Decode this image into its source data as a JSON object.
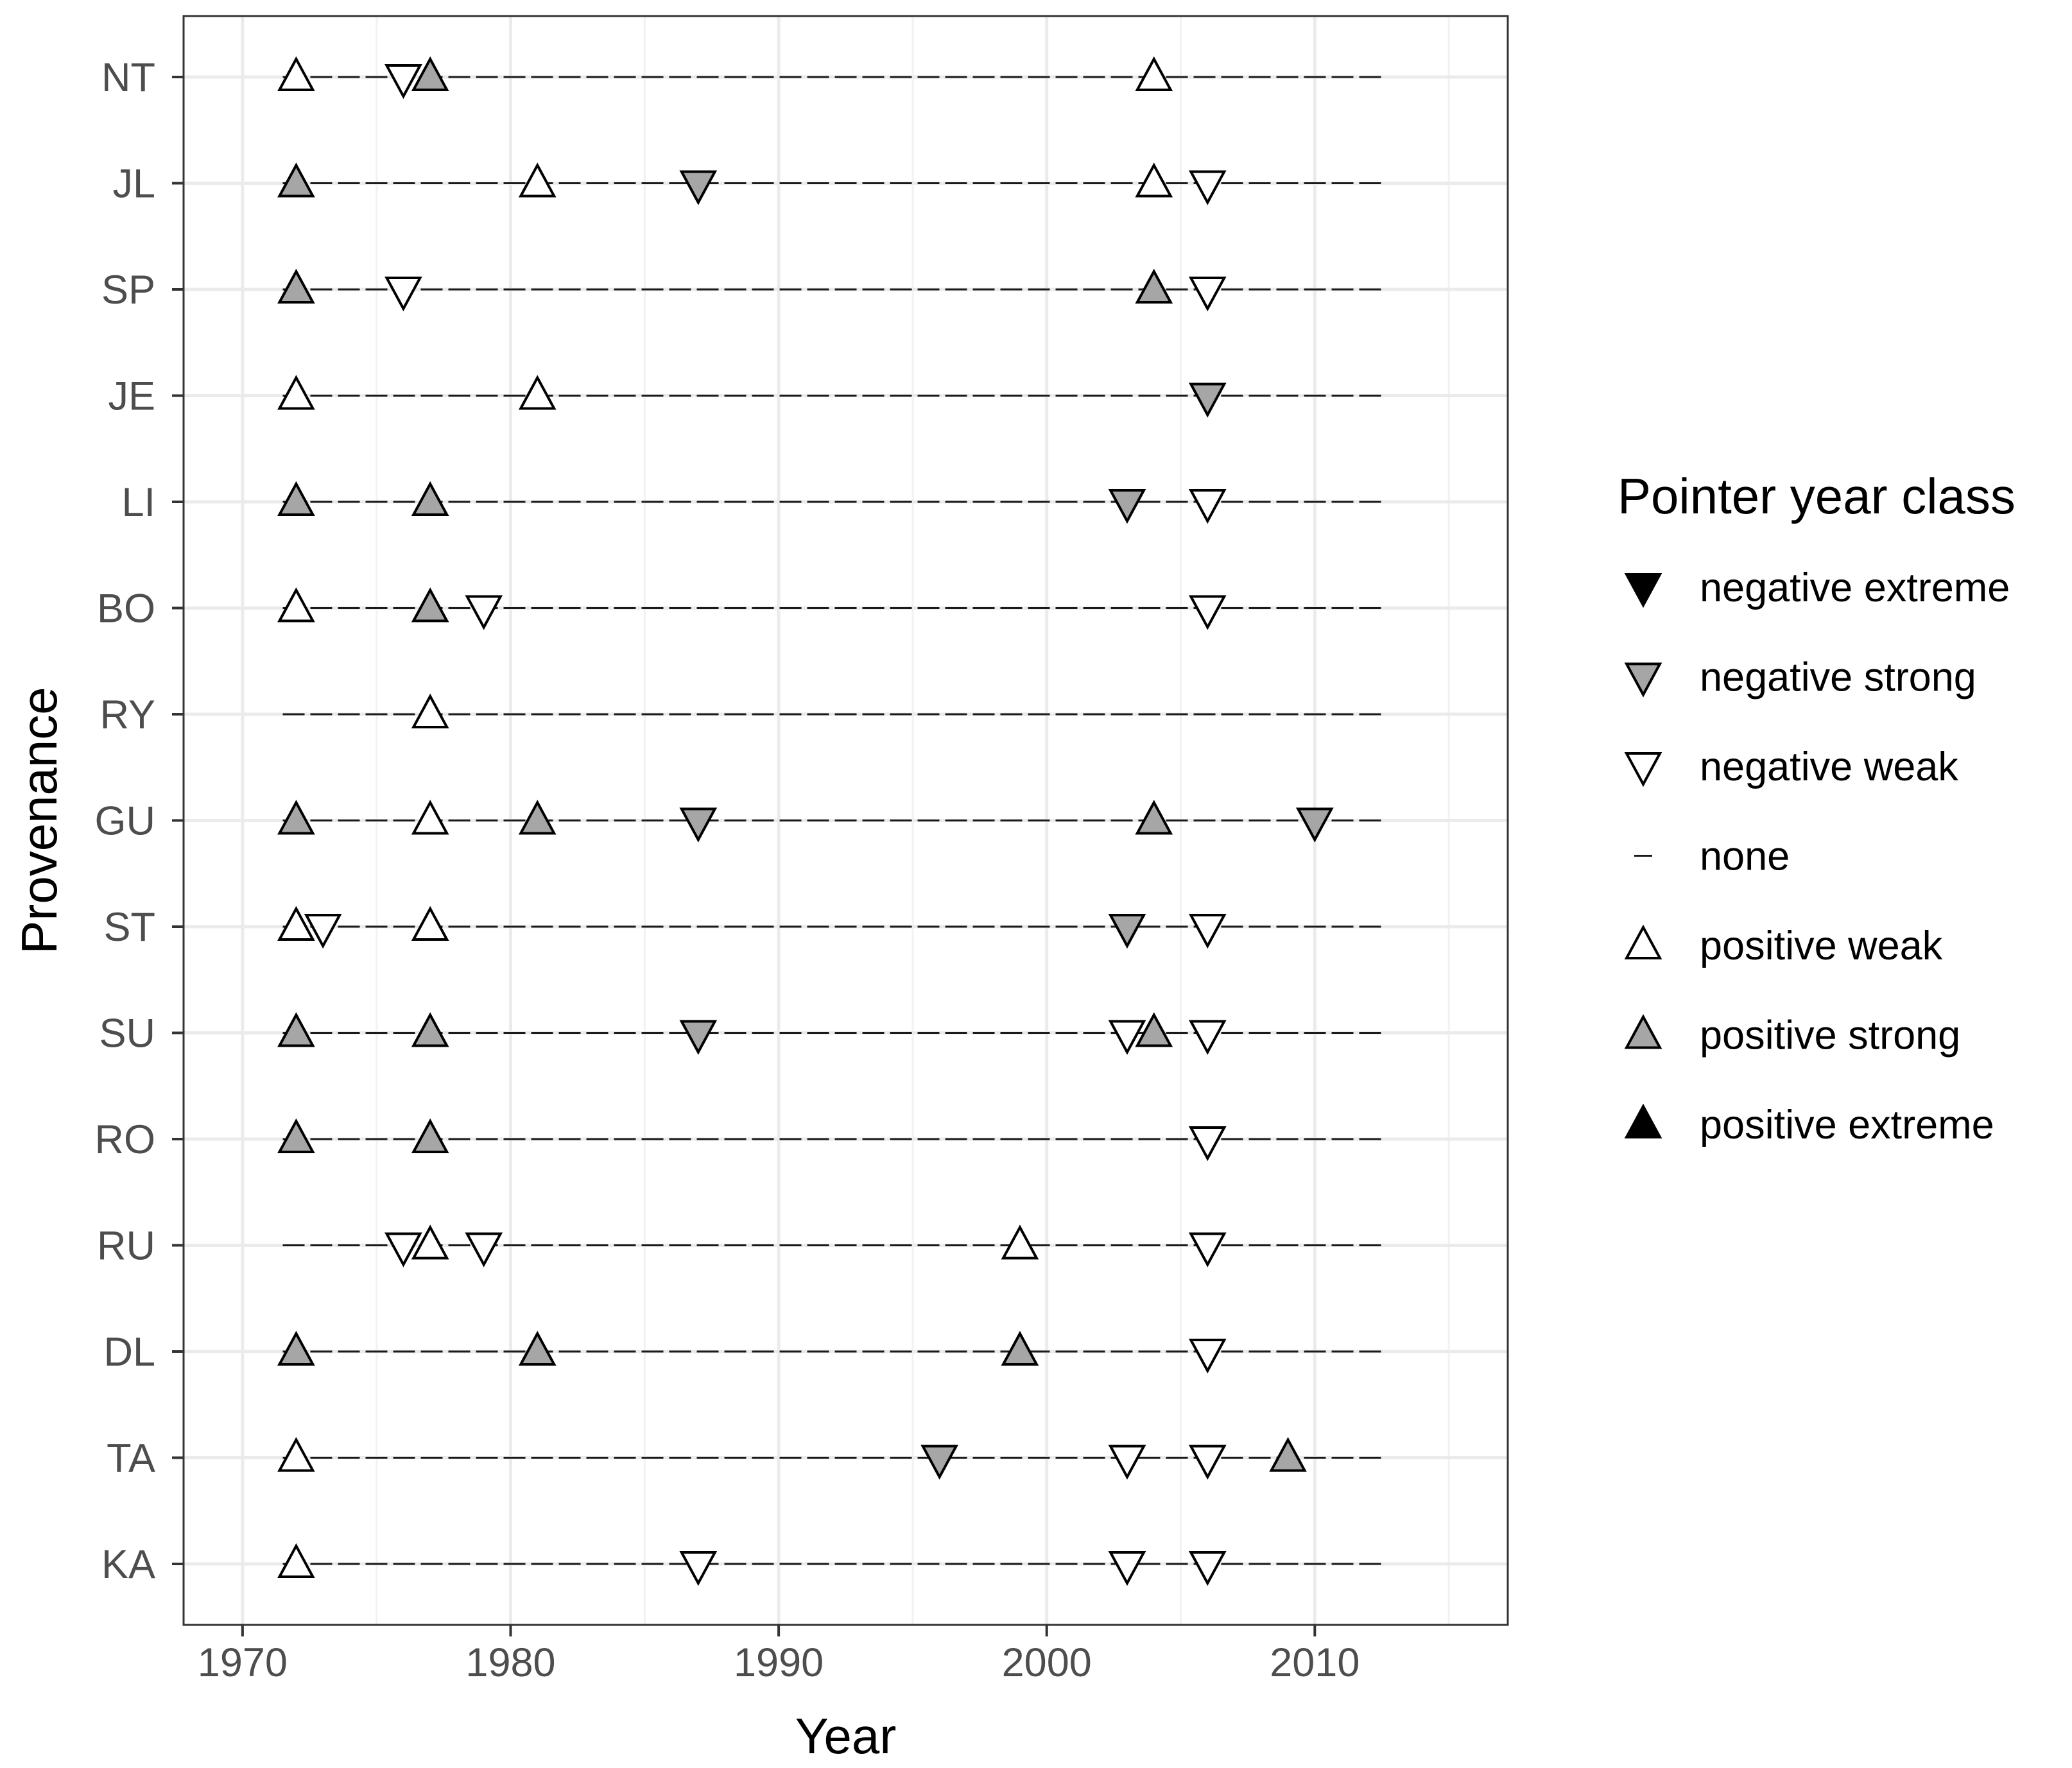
{
  "chart_data": {
    "type": "scatter",
    "xlabel": "Year",
    "ylabel": "Provenance",
    "xlim": [
      1967.8,
      2017.2
    ],
    "xticks": [
      1970,
      1980,
      1990,
      2000,
      2010
    ],
    "x_range_lines": [
      1971.5,
      2012.5
    ],
    "grid": true,
    "legend": {
      "title": "Pointer year class",
      "placement": "right",
      "entries": [
        {
          "label": "negative extreme",
          "class": "negative extreme"
        },
        {
          "label": "negative strong",
          "class": "negative strong"
        },
        {
          "label": "negative weak",
          "class": "negative weak"
        },
        {
          "label": "none",
          "class": "none"
        },
        {
          "label": "positive weak",
          "class": "positive weak"
        },
        {
          "label": "positive strong",
          "class": "positive strong"
        },
        {
          "label": "positive extreme",
          "class": "positive extreme"
        }
      ]
    },
    "class_style": {
      "negative extreme": {
        "shape": "down",
        "fill": "#000000"
      },
      "negative strong": {
        "shape": "down",
        "fill": "#a6a6a6"
      },
      "negative weak": {
        "shape": "down",
        "fill": "#ffffff"
      },
      "none": {
        "shape": "dash",
        "fill": "#000000"
      },
      "positive weak": {
        "shape": "up",
        "fill": "#ffffff"
      },
      "positive strong": {
        "shape": "up",
        "fill": "#a6a6a6"
      },
      "positive extreme": {
        "shape": "up",
        "fill": "#000000"
      }
    },
    "provenances": [
      "NT",
      "JL",
      "SP",
      "JE",
      "LI",
      "BO",
      "RY",
      "GU",
      "ST",
      "SU",
      "RO",
      "RU",
      "DL",
      "TA",
      "KA"
    ],
    "series": [
      {
        "provenance": "NT",
        "points": [
          {
            "year": 1972,
            "class": "positive weak"
          },
          {
            "year": 1976,
            "class": "negative weak"
          },
          {
            "year": 1977,
            "class": "positive strong"
          },
          {
            "year": 2004,
            "class": "positive weak"
          }
        ]
      },
      {
        "provenance": "JL",
        "points": [
          {
            "year": 1972,
            "class": "positive strong"
          },
          {
            "year": 1981,
            "class": "positive weak"
          },
          {
            "year": 1987,
            "class": "negative strong"
          },
          {
            "year": 2004,
            "class": "positive weak"
          },
          {
            "year": 2006,
            "class": "negative weak"
          }
        ]
      },
      {
        "provenance": "SP",
        "points": [
          {
            "year": 1972,
            "class": "positive strong"
          },
          {
            "year": 1976,
            "class": "negative weak"
          },
          {
            "year": 2004,
            "class": "positive strong"
          },
          {
            "year": 2006,
            "class": "negative weak"
          }
        ]
      },
      {
        "provenance": "JE",
        "points": [
          {
            "year": 1972,
            "class": "positive weak"
          },
          {
            "year": 1981,
            "class": "positive weak"
          },
          {
            "year": 2006,
            "class": "negative strong"
          }
        ]
      },
      {
        "provenance": "LI",
        "points": [
          {
            "year": 1972,
            "class": "positive strong"
          },
          {
            "year": 1977,
            "class": "positive strong"
          },
          {
            "year": 2003,
            "class": "negative strong"
          },
          {
            "year": 2006,
            "class": "negative weak"
          }
        ]
      },
      {
        "provenance": "BO",
        "points": [
          {
            "year": 1972,
            "class": "positive weak"
          },
          {
            "year": 1977,
            "class": "positive strong"
          },
          {
            "year": 1979,
            "class": "negative weak"
          },
          {
            "year": 2006,
            "class": "negative weak"
          }
        ]
      },
      {
        "provenance": "RY",
        "points": [
          {
            "year": 1977,
            "class": "positive weak"
          }
        ]
      },
      {
        "provenance": "GU",
        "points": [
          {
            "year": 1972,
            "class": "positive strong"
          },
          {
            "year": 1977,
            "class": "positive weak"
          },
          {
            "year": 1981,
            "class": "positive strong"
          },
          {
            "year": 1987,
            "class": "negative strong"
          },
          {
            "year": 2004,
            "class": "positive strong"
          },
          {
            "year": 2010,
            "class": "negative strong"
          }
        ]
      },
      {
        "provenance": "ST",
        "points": [
          {
            "year": 1972,
            "class": "positive weak"
          },
          {
            "year": 1973,
            "class": "negative weak"
          },
          {
            "year": 1977,
            "class": "positive weak"
          },
          {
            "year": 2003,
            "class": "negative strong"
          },
          {
            "year": 2006,
            "class": "negative weak"
          }
        ]
      },
      {
        "provenance": "SU",
        "points": [
          {
            "year": 1972,
            "class": "positive strong"
          },
          {
            "year": 1977,
            "class": "positive strong"
          },
          {
            "year": 1987,
            "class": "negative strong"
          },
          {
            "year": 2003,
            "class": "negative weak"
          },
          {
            "year": 2004,
            "class": "positive strong"
          },
          {
            "year": 2006,
            "class": "negative weak"
          }
        ]
      },
      {
        "provenance": "RO",
        "points": [
          {
            "year": 1972,
            "class": "positive strong"
          },
          {
            "year": 1977,
            "class": "positive strong"
          },
          {
            "year": 2006,
            "class": "negative weak"
          }
        ]
      },
      {
        "provenance": "RU",
        "points": [
          {
            "year": 1976,
            "class": "negative weak"
          },
          {
            "year": 1977,
            "class": "positive weak"
          },
          {
            "year": 1979,
            "class": "negative weak"
          },
          {
            "year": 1999,
            "class": "positive weak"
          },
          {
            "year": 2006,
            "class": "negative weak"
          }
        ]
      },
      {
        "provenance": "DL",
        "points": [
          {
            "year": 1972,
            "class": "positive strong"
          },
          {
            "year": 1981,
            "class": "positive strong"
          },
          {
            "year": 1999,
            "class": "positive strong"
          },
          {
            "year": 2006,
            "class": "negative weak"
          }
        ]
      },
      {
        "provenance": "TA",
        "points": [
          {
            "year": 1972,
            "class": "positive weak"
          },
          {
            "year": 1996,
            "class": "negative strong"
          },
          {
            "year": 2003,
            "class": "negative weak"
          },
          {
            "year": 2006,
            "class": "negative weak"
          },
          {
            "year": 2009,
            "class": "positive strong"
          }
        ]
      },
      {
        "provenance": "KA",
        "points": [
          {
            "year": 1972,
            "class": "positive weak"
          },
          {
            "year": 1987,
            "class": "negative weak"
          },
          {
            "year": 2003,
            "class": "negative weak"
          },
          {
            "year": 2006,
            "class": "negative weak"
          }
        ]
      }
    ]
  }
}
